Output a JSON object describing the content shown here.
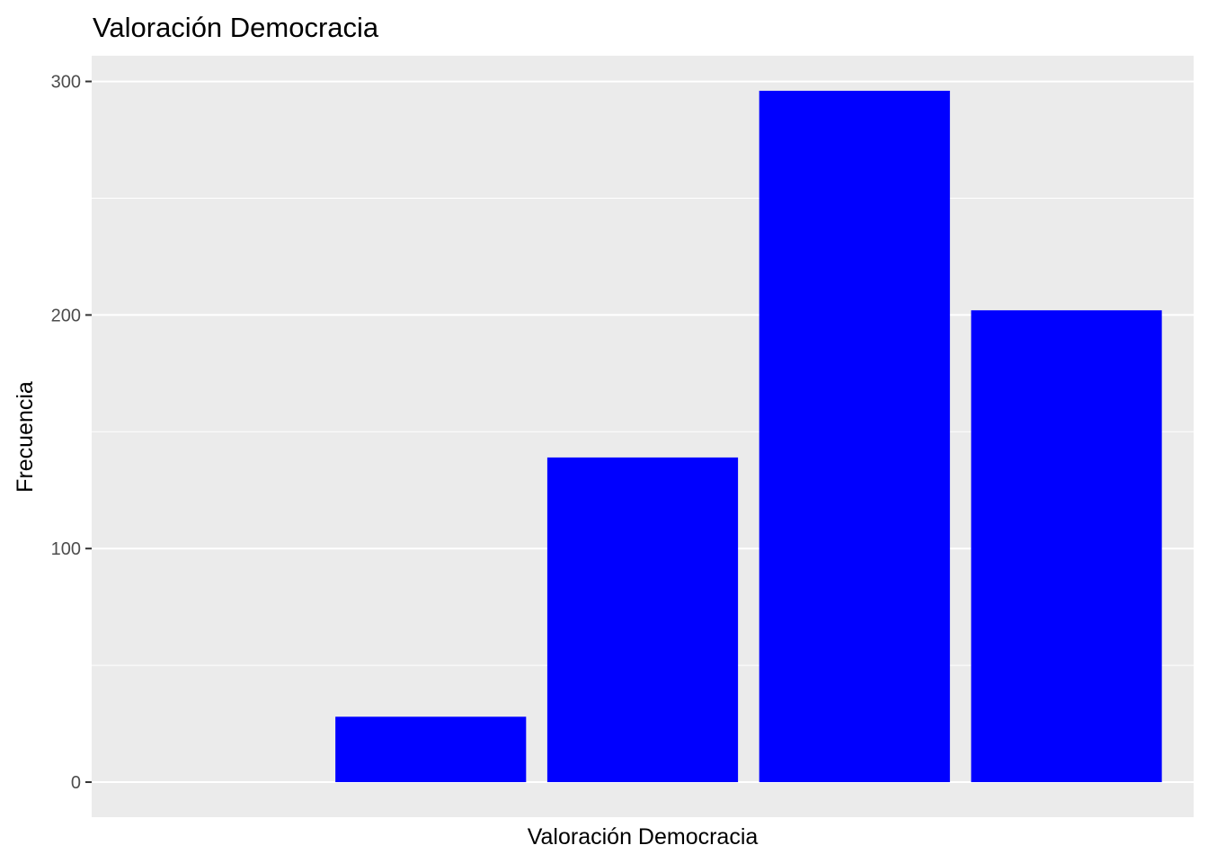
{
  "chart_data": {
    "type": "bar",
    "title": "Valoración Democracia",
    "xlabel": "Valoración Democracia",
    "ylabel": "Frecuencia",
    "categories": [
      "",
      "",
      "",
      ""
    ],
    "values": [
      28,
      139,
      296,
      202
    ],
    "ylim": [
      -15,
      311
    ],
    "yticks": [
      "0",
      "100",
      "200",
      "300"
    ],
    "ytick_values": [
      0,
      100,
      200,
      300
    ],
    "grid": true,
    "legend": "none",
    "bar_color": "#0000ff",
    "panel_background": "#ebebeb",
    "grid_color": "#ffffff"
  }
}
